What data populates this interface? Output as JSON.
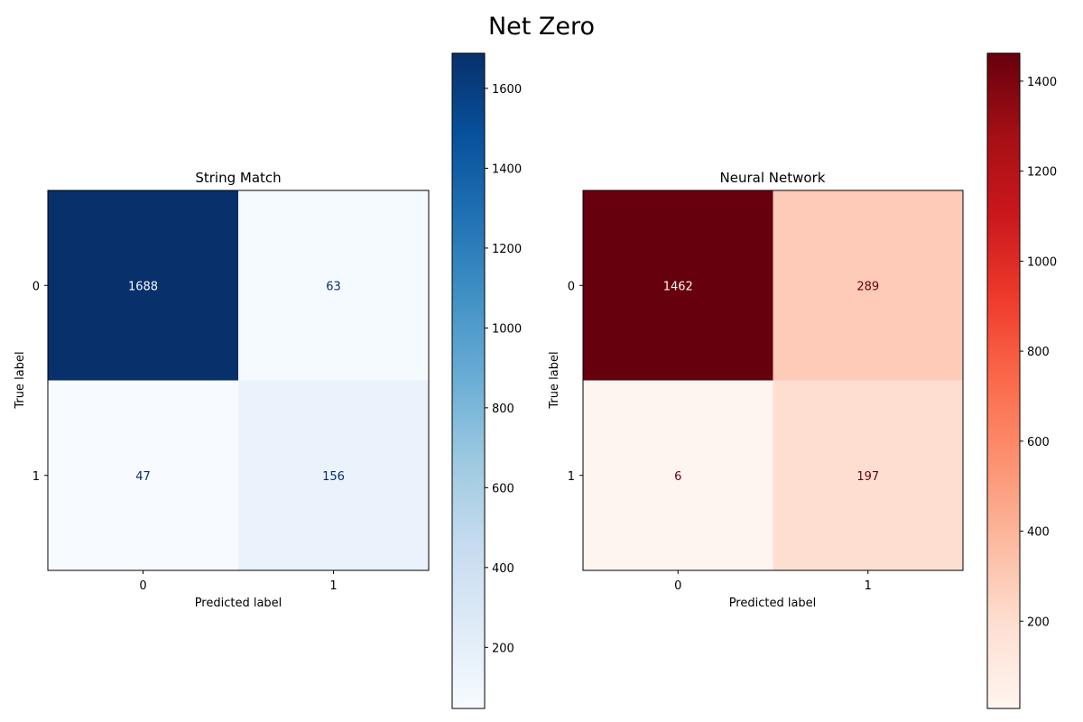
{
  "figure": {
    "title": "Net Zero"
  },
  "chart_data": [
    {
      "type": "heatmap",
      "title": "String Match",
      "xlabel": "Predicted label",
      "ylabel": "True label",
      "x_categories": [
        "0",
        "1"
      ],
      "y_categories": [
        "0",
        "1"
      ],
      "values": [
        [
          1688,
          63
        ],
        [
          47,
          156
        ]
      ],
      "colormap": "Blues",
      "colors": {
        "low": "#f7fbff",
        "high": "#08306b",
        "text_on_dark": "#f7fbff",
        "text_on_light": "#08306b"
      },
      "colorbar": {
        "range": [
          47,
          1688
        ],
        "ticks": [
          200,
          400,
          600,
          800,
          1000,
          1200,
          1400,
          1600
        ]
      },
      "grid": false
    },
    {
      "type": "heatmap",
      "title": "Neural Network",
      "xlabel": "Predicted label",
      "ylabel": "True label",
      "x_categories": [
        "0",
        "1"
      ],
      "y_categories": [
        "0",
        "1"
      ],
      "values": [
        [
          1462,
          289
        ],
        [
          6,
          197
        ]
      ],
      "colormap": "Reds",
      "colors": {
        "low": "#fff5f0",
        "high": "#67000d",
        "text_on_dark": "#fff5f0",
        "text_on_light": "#67000d"
      },
      "colorbar": {
        "range": [
          6,
          1462
        ],
        "ticks": [
          200,
          400,
          600,
          800,
          1000,
          1200,
          1400
        ]
      },
      "grid": false
    }
  ]
}
